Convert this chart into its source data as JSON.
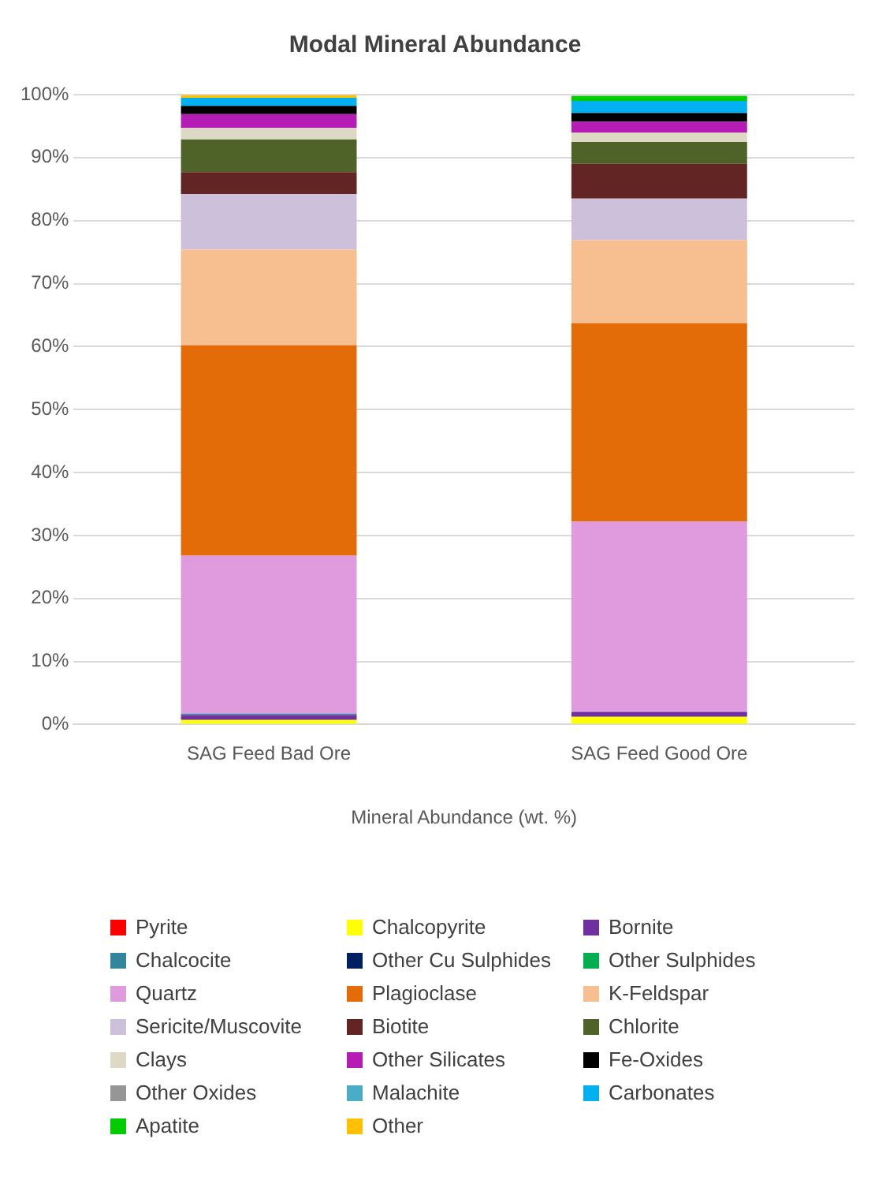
{
  "chart_data": {
    "type": "bar",
    "stacked": true,
    "title": "Modal Mineral Abundance",
    "xlabel": "Mineral Abundance (wt. %)",
    "categories": [
      "SAG Feed Bad Ore",
      "SAG Feed Good Ore"
    ],
    "ylim": [
      0,
      100
    ],
    "yticks": [
      {
        "value": 0,
        "label": "0%"
      },
      {
        "value": 10,
        "label": "10%"
      },
      {
        "value": 20,
        "label": "20%"
      },
      {
        "value": 30,
        "label": "30%"
      },
      {
        "value": 40,
        "label": "40%"
      },
      {
        "value": 50,
        "label": "50%"
      },
      {
        "value": 60,
        "label": "60%"
      },
      {
        "value": 70,
        "label": "70%"
      },
      {
        "value": 80,
        "label": "80%"
      },
      {
        "value": 90,
        "label": "90%"
      },
      {
        "value": 100,
        "label": "100%"
      }
    ],
    "grid": "y",
    "legend": "bottom",
    "series": [
      {
        "name": "Pyrite",
        "color": "#ff0000",
        "values": [
          0,
          0
        ]
      },
      {
        "name": "Chalcopyrite",
        "color": "#ffff00",
        "values": [
          0.7,
          1.2
        ]
      },
      {
        "name": "Bornite",
        "color": "#7030a0",
        "values": [
          0.8,
          0.8
        ]
      },
      {
        "name": "Chalcocite",
        "color": "#31859c",
        "values": [
          0.2,
          null
        ]
      },
      {
        "name": "Other Cu Sulphides",
        "color": "#002060",
        "values": [
          0,
          0
        ]
      },
      {
        "name": "Other Sulphides",
        "color": "#00b050",
        "values": [
          0,
          0
        ]
      },
      {
        "name": "Quartz",
        "color": "#e09ade",
        "values": [
          25.1,
          30.2
        ]
      },
      {
        "name": "Plagioclase",
        "color": "#e36c09",
        "values": [
          33.4,
          31.5
        ]
      },
      {
        "name": "K-Feldspar",
        "color": "#f7be8f",
        "values": [
          15.2,
          13.2
        ]
      },
      {
        "name": "Sericite/Muscovite",
        "color": "#ccc0da",
        "values": [
          8.8,
          6.6
        ]
      },
      {
        "name": "Biotite",
        "color": "#632523",
        "values": [
          3.5,
          5.5
        ]
      },
      {
        "name": "Chlorite",
        "color": "#4f6228",
        "values": [
          5.2,
          3.5
        ]
      },
      {
        "name": "Clays",
        "color": "#ddd9c4",
        "values": [
          1.8,
          1.5
        ]
      },
      {
        "name": "Other Silicates",
        "color": "#b41cb4",
        "values": [
          2.2,
          1.7
        ]
      },
      {
        "name": "Fe-Oxides",
        "color": "#000000",
        "values": [
          1.3,
          1.4
        ]
      },
      {
        "name": "Other Oxides",
        "color": "#969696",
        "values": [
          null,
          null
        ]
      },
      {
        "name": "Malachite",
        "color": "#4bacc6",
        "values": [
          0,
          0
        ]
      },
      {
        "name": "Carbonates",
        "color": "#00b0f0",
        "values": [
          1.3,
          1.9
        ]
      },
      {
        "name": "Apatite",
        "color": "#00cc00",
        "values": [
          0,
          0.8
        ]
      },
      {
        "name": "Other",
        "color": "#ffc000",
        "values": [
          0.4,
          null
        ]
      }
    ]
  }
}
